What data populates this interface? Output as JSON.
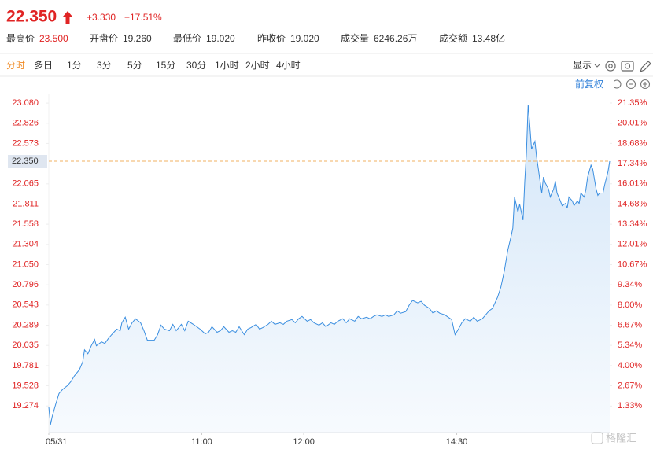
{
  "header": {
    "price": "22.350",
    "change": "+3.330",
    "change_pct": "+17.51%",
    "stats": [
      {
        "label": "最高价",
        "value": "23.500"
      },
      {
        "label": "开盘价",
        "value": "19.260"
      },
      {
        "label": "最低价",
        "value": "19.020"
      },
      {
        "label": "昨收价",
        "value": "19.020"
      },
      {
        "label": "成交量",
        "value": "6246.26万"
      },
      {
        "label": "成交额",
        "value": "13.48亿"
      }
    ]
  },
  "tabs": {
    "items": [
      "分时",
      "多日",
      "1分",
      "3分",
      "5分",
      "15分",
      "30分",
      "1小时",
      "2小时",
      "4小时"
    ],
    "active": 0,
    "display": "显示",
    "adjust": "前复权"
  },
  "watermark": "格隆汇",
  "chart_data": {
    "type": "area",
    "color": "#3a8ee0",
    "x": [
      0,
      1,
      2,
      4,
      6,
      8,
      11,
      13,
      15,
      18,
      20,
      21,
      23,
      25,
      27,
      28,
      31,
      33,
      35,
      37,
      40,
      42,
      43,
      45,
      47,
      49,
      51,
      54,
      56,
      58,
      62,
      64,
      66,
      68,
      71,
      73,
      75,
      78,
      80,
      82,
      85,
      87,
      89,
      92,
      94,
      96,
      99,
      101,
      103,
      106,
      108,
      110,
      112,
      115,
      117,
      119,
      122,
      124,
      126,
      129,
      131,
      133,
      136,
      138,
      140,
      143,
      145,
      147,
      149,
      152,
      154,
      156,
      159,
      161,
      163,
      166,
      168,
      170,
      173,
      175,
      177,
      180,
      182,
      184,
      187,
      189,
      191,
      193,
      196,
      198,
      200,
      203,
      205,
      207,
      210,
      212,
      214,
      217,
      219,
      221,
      224,
      226,
      228,
      230,
      233,
      235,
      237,
      239,
      241,
      243,
      245,
      248,
      250,
      252,
      255,
      257,
      259,
      261,
      264,
      266,
      268,
      270,
      272,
      273,
      274,
      276,
      277,
      279,
      280,
      281,
      282,
      283,
      284,
      286,
      287,
      288,
      290,
      291,
      292,
      294,
      295,
      297,
      298,
      299,
      301,
      302,
      304,
      305,
      306,
      308,
      309,
      311,
      312,
      313,
      315,
      316,
      317,
      319,
      320,
      322,
      323,
      324,
      326,
      327,
      329,
      330
    ],
    "values": [
      19.26,
      19.04,
      19.14,
      19.29,
      19.43,
      19.48,
      19.53,
      19.58,
      19.65,
      19.73,
      19.83,
      19.98,
      19.93,
      20.03,
      20.11,
      20.03,
      20.08,
      20.06,
      20.12,
      20.17,
      20.24,
      20.22,
      20.32,
      20.39,
      20.24,
      20.32,
      20.37,
      20.32,
      20.22,
      20.1,
      20.1,
      20.17,
      20.29,
      20.24,
      20.22,
      20.3,
      20.22,
      20.3,
      20.22,
      20.34,
      20.3,
      20.27,
      20.24,
      20.18,
      20.2,
      20.27,
      20.2,
      20.22,
      20.27,
      20.2,
      20.22,
      20.2,
      20.27,
      20.17,
      20.24,
      20.26,
      20.3,
      20.24,
      20.26,
      20.3,
      20.34,
      20.3,
      20.32,
      20.3,
      20.34,
      20.36,
      20.32,
      20.37,
      20.4,
      20.34,
      20.36,
      20.32,
      20.29,
      20.32,
      20.27,
      20.32,
      20.3,
      20.34,
      20.37,
      20.32,
      20.37,
      20.34,
      20.4,
      20.37,
      20.39,
      20.37,
      20.4,
      20.42,
      20.4,
      20.42,
      20.4,
      20.42,
      20.47,
      20.44,
      20.46,
      20.54,
      20.6,
      20.57,
      20.59,
      20.54,
      20.5,
      20.44,
      20.47,
      20.44,
      20.42,
      20.39,
      20.36,
      20.17,
      20.24,
      20.32,
      20.37,
      20.34,
      20.39,
      20.34,
      20.37,
      20.42,
      20.47,
      20.5,
      20.64,
      20.77,
      20.97,
      21.23,
      21.41,
      21.51,
      21.9,
      21.71,
      21.81,
      21.61,
      22.1,
      22.45,
      23.06,
      22.79,
      22.5,
      22.6,
      22.4,
      22.25,
      21.95,
      22.15,
      22.08,
      22.0,
      21.9,
      22.0,
      22.1,
      21.95,
      21.85,
      21.79,
      21.82,
      21.76,
      21.9,
      21.85,
      21.79,
      21.85,
      21.82,
      21.95,
      21.9,
      22.0,
      22.15,
      22.3,
      22.25,
      22.0,
      21.92,
      21.95,
      21.95,
      22.05,
      22.22,
      22.35
    ],
    "xlim": [
      0,
      330
    ],
    "xticks": [
      {
        "value": 0,
        "label": "05/31"
      },
      {
        "value": 90,
        "label": "11:00"
      },
      {
        "value": 150,
        "label": "12:00"
      },
      {
        "value": 240,
        "label": "14:30"
      }
    ],
    "ylim": [
      18.94,
      23.19
    ],
    "yticks": [
      {
        "value": 19.274,
        "label": "19.274"
      },
      {
        "value": 19.528,
        "label": "19.528"
      },
      {
        "value": 19.781,
        "label": "19.781"
      },
      {
        "value": 20.035,
        "label": "20.035"
      },
      {
        "value": 20.289,
        "label": "20.289"
      },
      {
        "value": 20.543,
        "label": "20.543"
      },
      {
        "value": 20.796,
        "label": "20.796"
      },
      {
        "value": 21.05,
        "label": "21.050"
      },
      {
        "value": 21.304,
        "label": "21.304"
      },
      {
        "value": 21.558,
        "label": "21.558"
      },
      {
        "value": 21.811,
        "label": "21.811"
      },
      {
        "value": 22.065,
        "label": "22.065"
      },
      {
        "value": 22.573,
        "label": "22.573"
      },
      {
        "value": 22.826,
        "label": "22.826"
      },
      {
        "value": 23.08,
        "label": "23.080"
      }
    ],
    "y2lim": [
      -0.42,
      21.92
    ],
    "y2ticks": [
      {
        "value": 1.33,
        "label": "1.33%"
      },
      {
        "value": 2.67,
        "label": "2.67%"
      },
      {
        "value": 4.0,
        "label": "4.00%"
      },
      {
        "value": 5.34,
        "label": "5.34%"
      },
      {
        "value": 6.67,
        "label": "6.67%"
      },
      {
        "value": 8.0,
        "label": "8.00%"
      },
      {
        "value": 9.34,
        "label": "9.34%"
      },
      {
        "value": 10.67,
        "label": "10.67%"
      },
      {
        "value": 12.01,
        "label": "12.01%"
      },
      {
        "value": 13.34,
        "label": "13.34%"
      },
      {
        "value": 14.68,
        "label": "14.68%"
      },
      {
        "value": 16.01,
        "label": "16.01%"
      },
      {
        "value": 17.34,
        "label": "17.34%"
      },
      {
        "value": 18.68,
        "label": "18.68%"
      },
      {
        "value": 20.01,
        "label": "20.01%"
      },
      {
        "value": 21.35,
        "label": "21.35%"
      }
    ],
    "reference_line": {
      "value": 22.35,
      "label": "22.350",
      "color": "#f0b060"
    }
  }
}
